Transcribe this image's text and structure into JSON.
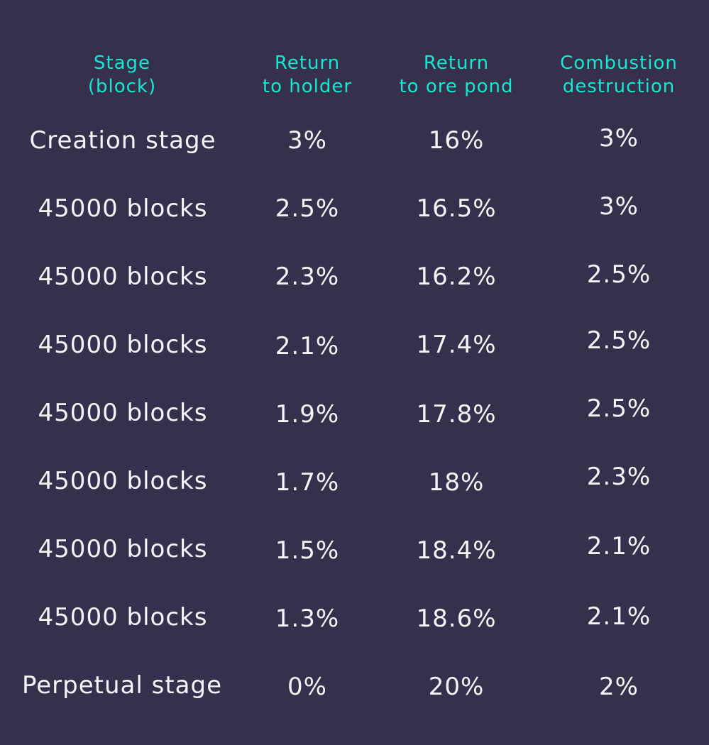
{
  "table": {
    "headers": [
      {
        "line1": "Stage",
        "line2": "(block)"
      },
      {
        "line1": "Return",
        "line2": "to holder"
      },
      {
        "line1": "Return",
        "line2": "to ore pond"
      },
      {
        "line1": "Combustion",
        "line2": "destruction"
      }
    ],
    "rows": [
      [
        "Creation stage",
        "3%",
        "16%",
        "3%"
      ],
      [
        "45000 blocks",
        "2.5%",
        "16.5%",
        "3%"
      ],
      [
        "45000 blocks",
        "2.3%",
        "16.2%",
        "2.5%"
      ],
      [
        "45000 blocks",
        "2.1%",
        "17.4%",
        "2.5%"
      ],
      [
        "45000 blocks",
        "1.9%",
        "17.8%",
        "2.5%"
      ],
      [
        "45000 blocks",
        "1.7%",
        "18%",
        "2.3%"
      ],
      [
        "45000 blocks",
        "1.5%",
        "18.4%",
        "2.1%"
      ],
      [
        "45000 blocks",
        "1.3%",
        "18.6%",
        "2.1%"
      ],
      [
        "Perpetual stage",
        "0%",
        "20%",
        "2%"
      ]
    ]
  }
}
